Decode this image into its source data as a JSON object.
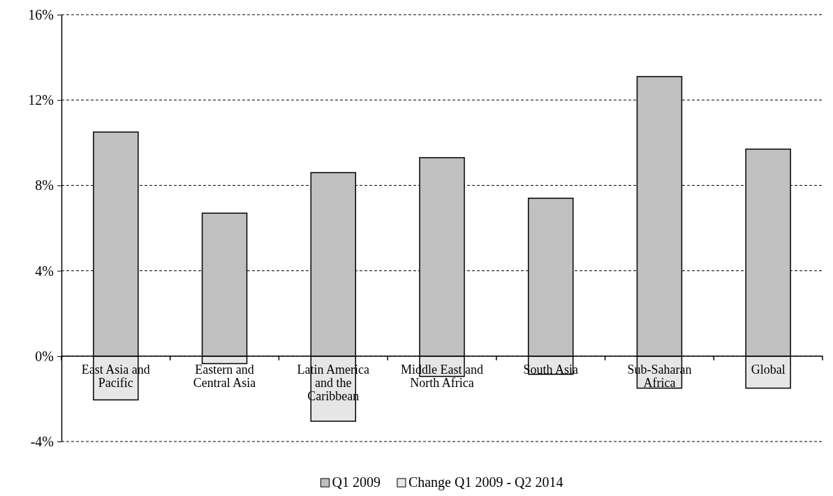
{
  "chart_data": {
    "type": "bar",
    "categories": [
      "East Asia and Pacific",
      "Eastern and Central Asia",
      "Latin America and the Caribbean",
      "Middle East and North Africa",
      "South Asia",
      "Sub-Saharan Africa",
      "Global"
    ],
    "series": [
      {
        "name": "Q1 2009",
        "color": "#c0c0c0",
        "values": [
          10.5,
          6.7,
          8.6,
          9.3,
          7.4,
          13.1,
          9.7
        ]
      },
      {
        "name": "Change Q1 2009 - Q2 2014",
        "color": "#e6e6e6",
        "values": [
          -2.05,
          -0.35,
          -3.05,
          -0.95,
          -0.85,
          -1.5,
          -1.5
        ]
      }
    ],
    "ylim": [
      -4,
      16
    ],
    "yticks": [
      {
        "value": -4,
        "label": "-4%"
      },
      {
        "value": 0,
        "label": "0%"
      },
      {
        "value": 4,
        "label": "4%"
      },
      {
        "value": 8,
        "label": "8%"
      },
      {
        "value": 12,
        "label": "12%"
      },
      {
        "value": 16,
        "label": "16%"
      }
    ],
    "grid": "y",
    "legend": "bottom",
    "stacked": true
  }
}
